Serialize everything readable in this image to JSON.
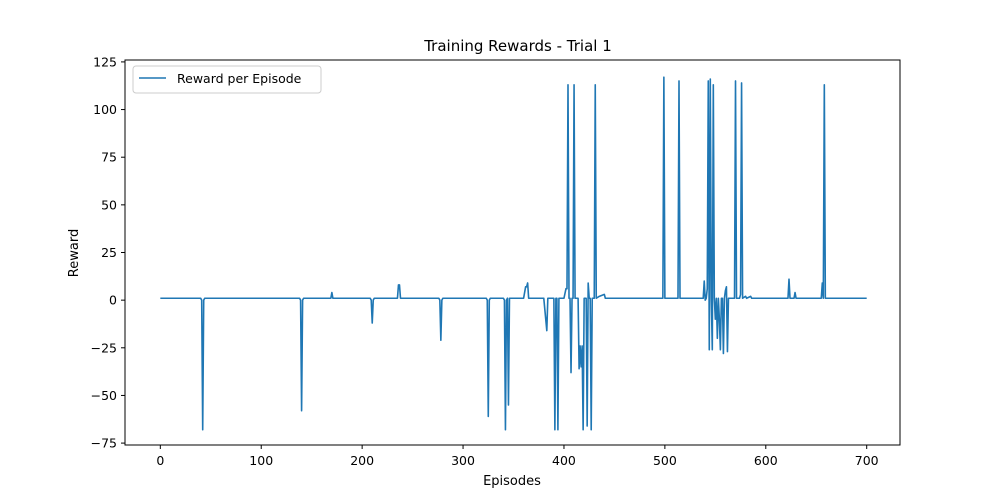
{
  "chart_data": {
    "type": "line",
    "title": "Training Rewards - Trial 1",
    "xlabel": "Episodes",
    "ylabel": "Reward",
    "xlim": [
      -35,
      733
    ],
    "ylim": [
      -76,
      126
    ],
    "xticks": [
      0,
      100,
      200,
      300,
      400,
      500,
      600,
      700
    ],
    "yticks": [
      -75,
      -50,
      -25,
      0,
      25,
      50,
      75,
      100,
      125
    ],
    "grid": false,
    "legend_position": "top-left",
    "color": "#1f77b4",
    "series": [
      {
        "name": "Reward per Episode",
        "points": [
          [
            0,
            1
          ],
          [
            40,
            1
          ],
          [
            41,
            0
          ],
          [
            42,
            -68
          ],
          [
            43,
            0
          ],
          [
            44,
            1
          ],
          [
            138,
            1
          ],
          [
            139,
            0
          ],
          [
            140,
            -58
          ],
          [
            141,
            0
          ],
          [
            142,
            1
          ],
          [
            169,
            1
          ],
          [
            170,
            4
          ],
          [
            171,
            1
          ],
          [
            208,
            1
          ],
          [
            209,
            0
          ],
          [
            210,
            -12
          ],
          [
            211,
            0
          ],
          [
            212,
            1
          ],
          [
            235,
            1
          ],
          [
            236,
            8
          ],
          [
            237,
            8
          ],
          [
            238,
            1
          ],
          [
            276,
            1
          ],
          [
            277,
            0
          ],
          [
            278,
            -21
          ],
          [
            279,
            0
          ],
          [
            280,
            1
          ],
          [
            323,
            1
          ],
          [
            324,
            0
          ],
          [
            325,
            -61
          ],
          [
            326,
            0
          ],
          [
            327,
            1
          ],
          [
            340,
            1
          ],
          [
            341,
            0
          ],
          [
            342,
            -68
          ],
          [
            343,
            0
          ],
          [
            344,
            1
          ],
          [
            345,
            -55
          ],
          [
            346,
            1
          ],
          [
            380,
            1
          ],
          [
            383,
            -16
          ],
          [
            384,
            1
          ],
          [
            385,
            1
          ],
          [
            386,
            1
          ],
          [
            360,
            1
          ],
          [
            362,
            7
          ],
          [
            363,
            7
          ],
          [
            364,
            9
          ],
          [
            365,
            1
          ],
          [
            390,
            1
          ],
          [
            391,
            -68
          ],
          [
            392,
            1
          ],
          [
            393,
            1
          ],
          [
            394,
            -68
          ],
          [
            395,
            1
          ],
          [
            400,
            1
          ],
          [
            402,
            6
          ],
          [
            403,
            6
          ],
          [
            404,
            113
          ],
          [
            405,
            1
          ],
          [
            406,
            1
          ],
          [
            407,
            -38
          ],
          [
            408,
            1
          ],
          [
            409,
            1
          ],
          [
            410,
            113
          ],
          [
            411,
            1
          ],
          [
            414,
            1
          ],
          [
            415,
            -36
          ],
          [
            416,
            -24
          ],
          [
            417,
            -35
          ],
          [
            418,
            -24
          ],
          [
            419,
            -68
          ],
          [
            420,
            1
          ],
          [
            422,
            1
          ],
          [
            423,
            -66
          ],
          [
            424,
            9
          ],
          [
            425,
            1
          ],
          [
            426,
            1
          ],
          [
            427,
            -68
          ],
          [
            428,
            1
          ],
          [
            430,
            1
          ],
          [
            431,
            113
          ],
          [
            432,
            1
          ],
          [
            435,
            2
          ],
          [
            440,
            3
          ],
          [
            441,
            1
          ],
          [
            498,
            1
          ],
          [
            499,
            117
          ],
          [
            500,
            1
          ],
          [
            513,
            1
          ],
          [
            514,
            115
          ],
          [
            515,
            1
          ],
          [
            538,
            1
          ],
          [
            539,
            10
          ],
          [
            540,
            0
          ],
          [
            541,
            1
          ],
          [
            542,
            6
          ],
          [
            543,
            115
          ],
          [
            544,
            -26
          ],
          [
            545,
            116
          ],
          [
            546,
            1
          ],
          [
            547,
            -26
          ],
          [
            548,
            113
          ],
          [
            549,
            1
          ],
          [
            550,
            -10
          ],
          [
            551,
            1
          ],
          [
            552,
            -20
          ],
          [
            553,
            1
          ],
          [
            554,
            -10
          ],
          [
            555,
            -26
          ],
          [
            556,
            1
          ],
          [
            557,
            1
          ],
          [
            558,
            -28
          ],
          [
            559,
            1
          ],
          [
            560,
            5
          ],
          [
            561,
            7
          ],
          [
            562,
            -27
          ],
          [
            563,
            1
          ],
          [
            568,
            1
          ],
          [
            569,
            1
          ],
          [
            570,
            115
          ],
          [
            571,
            1
          ],
          [
            574,
            1
          ],
          [
            575,
            3
          ],
          [
            576,
            114
          ],
          [
            577,
            1
          ],
          [
            580,
            2
          ],
          [
            581,
            1
          ],
          [
            585,
            2
          ],
          [
            586,
            1
          ],
          [
            622,
            1
          ],
          [
            623,
            11
          ],
          [
            624,
            1
          ],
          [
            628,
            1
          ],
          [
            629,
            4
          ],
          [
            630,
            1
          ],
          [
            655,
            1
          ],
          [
            656,
            9
          ],
          [
            657,
            1
          ],
          [
            658,
            113
          ],
          [
            659,
            1
          ],
          [
            700,
            1
          ]
        ]
      }
    ]
  }
}
